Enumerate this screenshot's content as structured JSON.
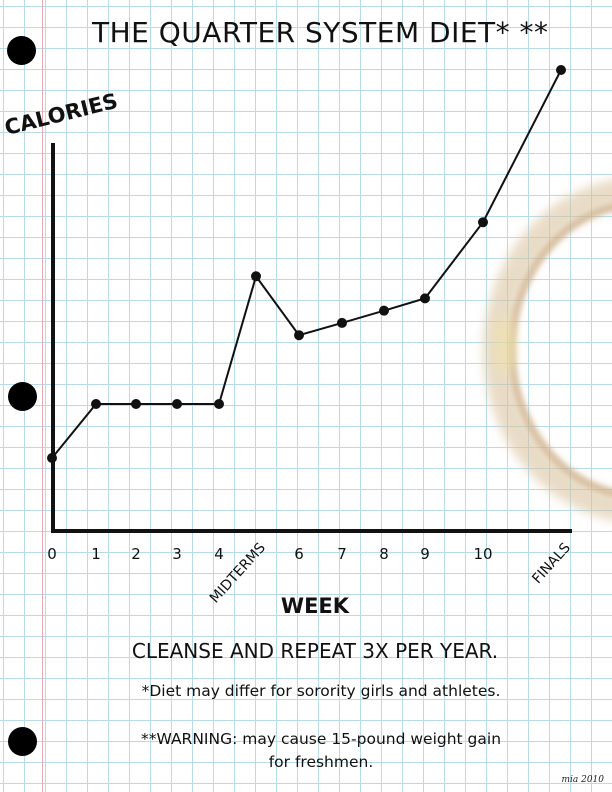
{
  "chart_data": {
    "type": "line",
    "title": "THE QUARTER SYSTEM DIET* **",
    "xlabel": "WEEK",
    "ylabel": "CALORIES",
    "categories": [
      "0",
      "1",
      "2",
      "3",
      "4",
      "MIDTERMS",
      "6",
      "7",
      "8",
      "9",
      "10",
      "FINALS"
    ],
    "values": [
      21,
      32,
      32,
      32,
      32,
      58,
      46,
      48.5,
      51,
      53.5,
      69,
      100
    ],
    "ylim": [
      0,
      100
    ],
    "grid": true,
    "legend": "none"
  },
  "notes": {
    "cleanse": "CLEANSE AND REPEAT 3X PER YEAR.",
    "footnote1": "*Diet may differ for sorority girls and athletes.",
    "footnote2_line1": "**WARNING: may cause 15-pound weight gain",
    "footnote2_line2": "for freshmen."
  },
  "credit": "mia 2010",
  "colors": {
    "grid": "#b8dbe8",
    "margin_line": "#e6a9b4",
    "ink": "#111111",
    "stain": "#d2b48c"
  }
}
